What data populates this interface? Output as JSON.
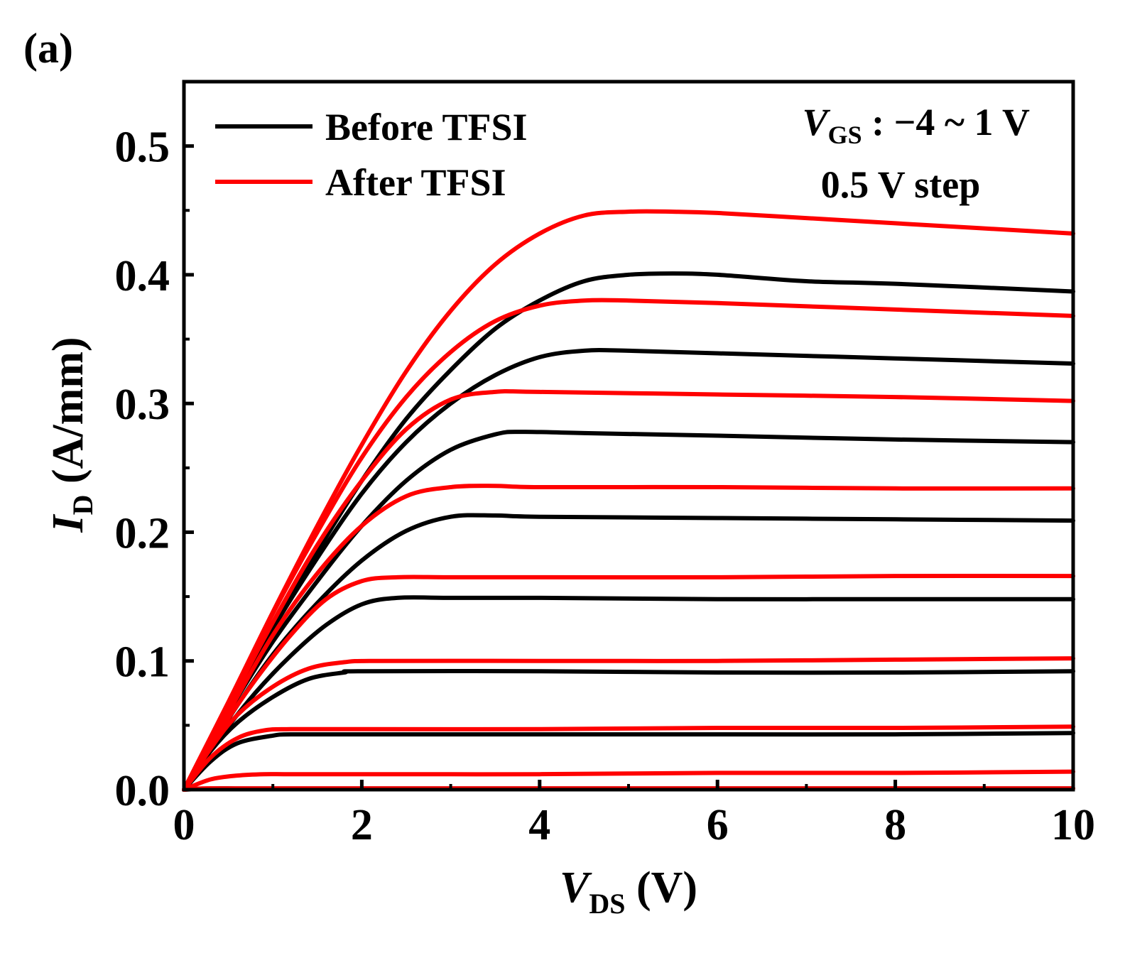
{
  "panel_label": "(a)",
  "colors": {
    "before": "#000000",
    "after": "#ff0000",
    "axis": "#000000"
  },
  "legend": [
    {
      "label": "Before TFSI",
      "color": "#000000"
    },
    {
      "label": "After TFSI",
      "color": "#ff0000"
    }
  ],
  "annotation": {
    "vgs_symbol": "V",
    "vgs_sub": "GS",
    "vgs_rest": " : −4 ~ 1 V",
    "step": "0.5 V step"
  },
  "chart_data": {
    "type": "line",
    "title": "",
    "xlabel": {
      "symbol": "V",
      "sub": "DS",
      "unit": " (V)"
    },
    "ylabel": {
      "symbol": "I",
      "sub": "D",
      "unit": " (A/mm)"
    },
    "xlim": [
      0,
      10
    ],
    "ylim": [
      0,
      0.55
    ],
    "xticks": [
      0,
      2,
      4,
      6,
      8,
      10
    ],
    "xtick_labels": [
      "0",
      "2",
      "4",
      "6",
      "8",
      "10"
    ],
    "yticks": [
      0.0,
      0.1,
      0.2,
      0.3,
      0.4,
      0.5
    ],
    "ytick_labels": [
      "0.0",
      "0.1",
      "0.2",
      "0.3",
      "0.4",
      "0.5"
    ],
    "legend_position": "top-left",
    "series": [
      {
        "name": "Before TFSI",
        "color": "#000000",
        "curves": [
          {
            "x": [
              0,
              0.3,
              0.6,
              1,
              2,
              4,
              6,
              8,
              10
            ],
            "y": [
              0,
              0.001,
              0.001,
              0.001,
              0.001,
              0.001,
              0.001,
              0.001,
              0.001
            ]
          },
          {
            "x": [
              0,
              0.3,
              0.6,
              1,
              1.2,
              2,
              4,
              6,
              8,
              10
            ],
            "y": [
              0,
              0.022,
              0.036,
              0.042,
              0.043,
              0.043,
              0.043,
              0.043,
              0.043,
              0.044
            ]
          },
          {
            "x": [
              0,
              0.3,
              0.6,
              1,
              1.4,
              1.8,
              2,
              4,
              6,
              8,
              10
            ],
            "y": [
              0,
              0.03,
              0.052,
              0.072,
              0.086,
              0.091,
              0.092,
              0.092,
              0.091,
              0.091,
              0.092
            ]
          },
          {
            "x": [
              0,
              0.4,
              0.8,
              1.2,
              1.6,
              2.0,
              2.4,
              3,
              4,
              6,
              8,
              10
            ],
            "y": [
              0,
              0.04,
              0.075,
              0.104,
              0.128,
              0.144,
              0.149,
              0.149,
              0.149,
              0.148,
              0.148,
              0.148
            ]
          },
          {
            "x": [
              0,
              0.5,
              1,
              1.5,
              2,
              2.5,
              3.0,
              3.5,
              4,
              6,
              8,
              10
            ],
            "y": [
              0,
              0.055,
              0.105,
              0.145,
              0.178,
              0.201,
              0.212,
              0.213,
              0.212,
              0.211,
              0.21,
              0.209
            ]
          },
          {
            "x": [
              0,
              0.5,
              1,
              1.5,
              2,
              2.5,
              3,
              3.5,
              3.8,
              4.5,
              6,
              8,
              10
            ],
            "y": [
              0,
              0.06,
              0.115,
              0.162,
              0.205,
              0.24,
              0.264,
              0.276,
              0.278,
              0.277,
              0.275,
              0.272,
              0.27
            ]
          },
          {
            "x": [
              0,
              0.5,
              1,
              1.5,
              2,
              2.5,
              3,
              3.5,
              4,
              4.5,
              5,
              6,
              8,
              10
            ],
            "y": [
              0,
              0.062,
              0.125,
              0.18,
              0.23,
              0.27,
              0.3,
              0.322,
              0.336,
              0.341,
              0.341,
              0.339,
              0.335,
              0.331
            ]
          },
          {
            "x": [
              0,
              0.5,
              1,
              1.5,
              2,
              2.5,
              3,
              3.5,
              4,
              4.5,
              5,
              5.5,
              6,
              7,
              8,
              10
            ],
            "y": [
              0,
              0.062,
              0.125,
              0.185,
              0.24,
              0.288,
              0.326,
              0.358,
              0.38,
              0.395,
              0.4,
              0.401,
              0.4,
              0.395,
              0.393,
              0.387
            ]
          }
        ]
      },
      {
        "name": "After TFSI",
        "color": "#ff0000",
        "curves": [
          {
            "x": [
              0,
              0.2,
              0.4,
              0.8,
              1.5,
              3,
              6,
              8,
              10
            ],
            "y": [
              0,
              0.001,
              0.001,
              0.001,
              0.001,
              0.001,
              0.001,
              0.001,
              0.001
            ]
          },
          {
            "x": [
              0,
              0.3,
              0.6,
              0.9,
              1.2,
              2,
              4,
              6,
              8,
              10
            ],
            "y": [
              0,
              0.008,
              0.011,
              0.012,
              0.012,
              0.012,
              0.012,
              0.013,
              0.013,
              0.014
            ]
          },
          {
            "x": [
              0,
              0.3,
              0.6,
              0.9,
              1.2,
              2,
              4,
              6,
              8,
              10
            ],
            "y": [
              0,
              0.025,
              0.04,
              0.046,
              0.047,
              0.047,
              0.047,
              0.048,
              0.048,
              0.049
            ]
          },
          {
            "x": [
              0,
              0.3,
              0.6,
              1,
              1.4,
              1.8,
              2.2,
              4,
              6,
              8,
              10
            ],
            "y": [
              0,
              0.032,
              0.058,
              0.08,
              0.094,
              0.099,
              0.1,
              0.1,
              0.1,
              0.101,
              0.102
            ]
          },
          {
            "x": [
              0,
              0.4,
              0.8,
              1.2,
              1.6,
              2.0,
              2.4,
              3,
              4,
              6,
              8,
              10
            ],
            "y": [
              0,
              0.045,
              0.085,
              0.12,
              0.148,
              0.162,
              0.165,
              0.165,
              0.165,
              0.165,
              0.166,
              0.166
            ]
          },
          {
            "x": [
              0,
              0.5,
              1,
              1.5,
              2,
              2.5,
              3,
              3.5,
              4,
              6,
              8,
              10
            ],
            "y": [
              0,
              0.06,
              0.12,
              0.168,
              0.205,
              0.228,
              0.235,
              0.236,
              0.235,
              0.235,
              0.234,
              0.234
            ]
          },
          {
            "x": [
              0,
              0.5,
              1,
              1.5,
              2,
              2.5,
              3,
              3.5,
              4,
              6,
              8,
              10
            ],
            "y": [
              0,
              0.065,
              0.13,
              0.19,
              0.24,
              0.28,
              0.303,
              0.309,
              0.309,
              0.307,
              0.305,
              0.302
            ]
          },
          {
            "x": [
              0,
              0.5,
              1,
              1.5,
              2,
              2.5,
              3,
              3.5,
              4,
              4.5,
              5,
              6,
              8,
              10
            ],
            "y": [
              0,
              0.068,
              0.137,
              0.2,
              0.258,
              0.305,
              0.34,
              0.364,
              0.376,
              0.38,
              0.38,
              0.378,
              0.373,
              0.368
            ]
          },
          {
            "x": [
              0,
              0.5,
              1,
              1.5,
              2,
              2.5,
              3,
              3.5,
              4,
              4.5,
              5,
              5.5,
              6,
              7,
              8,
              10
            ],
            "y": [
              0,
              0.068,
              0.138,
              0.205,
              0.268,
              0.325,
              0.372,
              0.408,
              0.432,
              0.446,
              0.449,
              0.449,
              0.448,
              0.444,
              0.44,
              0.432
            ]
          }
        ]
      }
    ]
  }
}
